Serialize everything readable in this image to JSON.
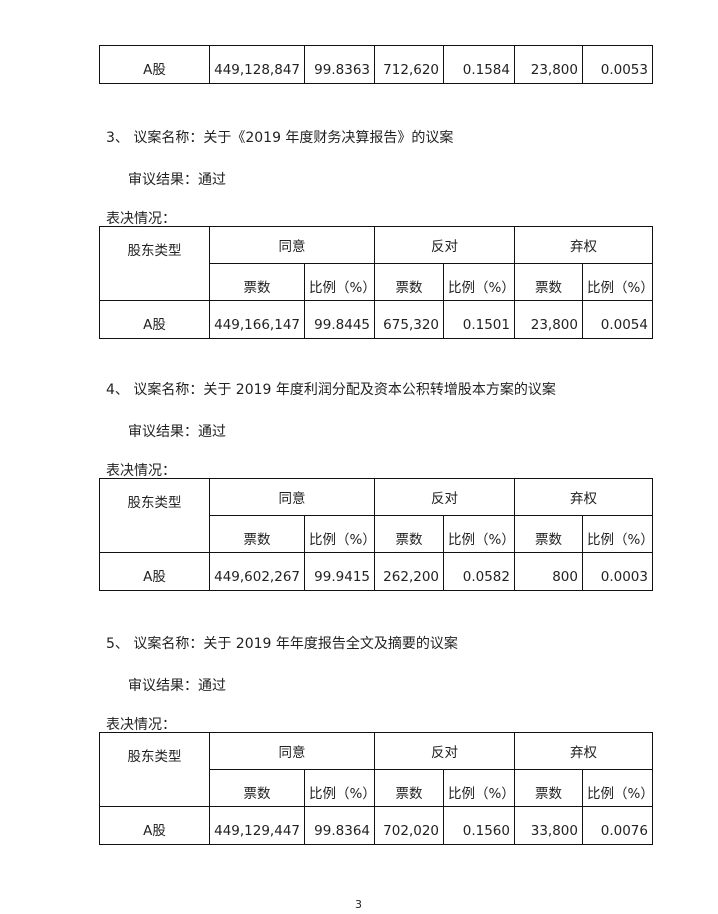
{
  "headers": {
    "shareholder_type": "股东类型",
    "agree": "同意",
    "against": "反对",
    "abstain": "弃权",
    "votes": "票数",
    "ratio": "比例（%）"
  },
  "top_table": {
    "row": {
      "type": "A股",
      "agree_votes": "449,128,847",
      "agree_ratio": "99.8363",
      "against_votes": "712,620",
      "against_ratio": "0.1584",
      "abstain_votes": "23,800",
      "abstain_ratio": "0.0053"
    }
  },
  "sections": [
    {
      "title": "3、 议案名称：关于《2019 年度财务决算报告》的议案",
      "result": "审议结果：通过",
      "vote_label": "表决情况：",
      "row": {
        "type": "A股",
        "agree_votes": "449,166,147",
        "agree_ratio": "99.8445",
        "against_votes": "675,320",
        "against_ratio": "0.1501",
        "abstain_votes": "23,800",
        "abstain_ratio": "0.0054"
      }
    },
    {
      "title": "4、 议案名称：关于 2019 年度利润分配及资本公积转增股本方案的议案",
      "result": "审议结果：通过",
      "vote_label": "表决情况：",
      "row": {
        "type": "A股",
        "agree_votes": "449,602,267",
        "agree_ratio": "99.9415",
        "against_votes": "262,200",
        "against_ratio": "0.0582",
        "abstain_votes": "800",
        "abstain_ratio": "0.0003"
      }
    },
    {
      "title": "5、 议案名称：关于 2019 年年度报告全文及摘要的议案",
      "result": "审议结果：通过",
      "vote_label": "表决情况：",
      "row": {
        "type": "A股",
        "agree_votes": "449,129,447",
        "agree_ratio": "99.8364",
        "against_votes": "702,020",
        "against_ratio": "0.1560",
        "abstain_votes": "33,800",
        "abstain_ratio": "0.0076"
      }
    }
  ],
  "page_number": "3"
}
